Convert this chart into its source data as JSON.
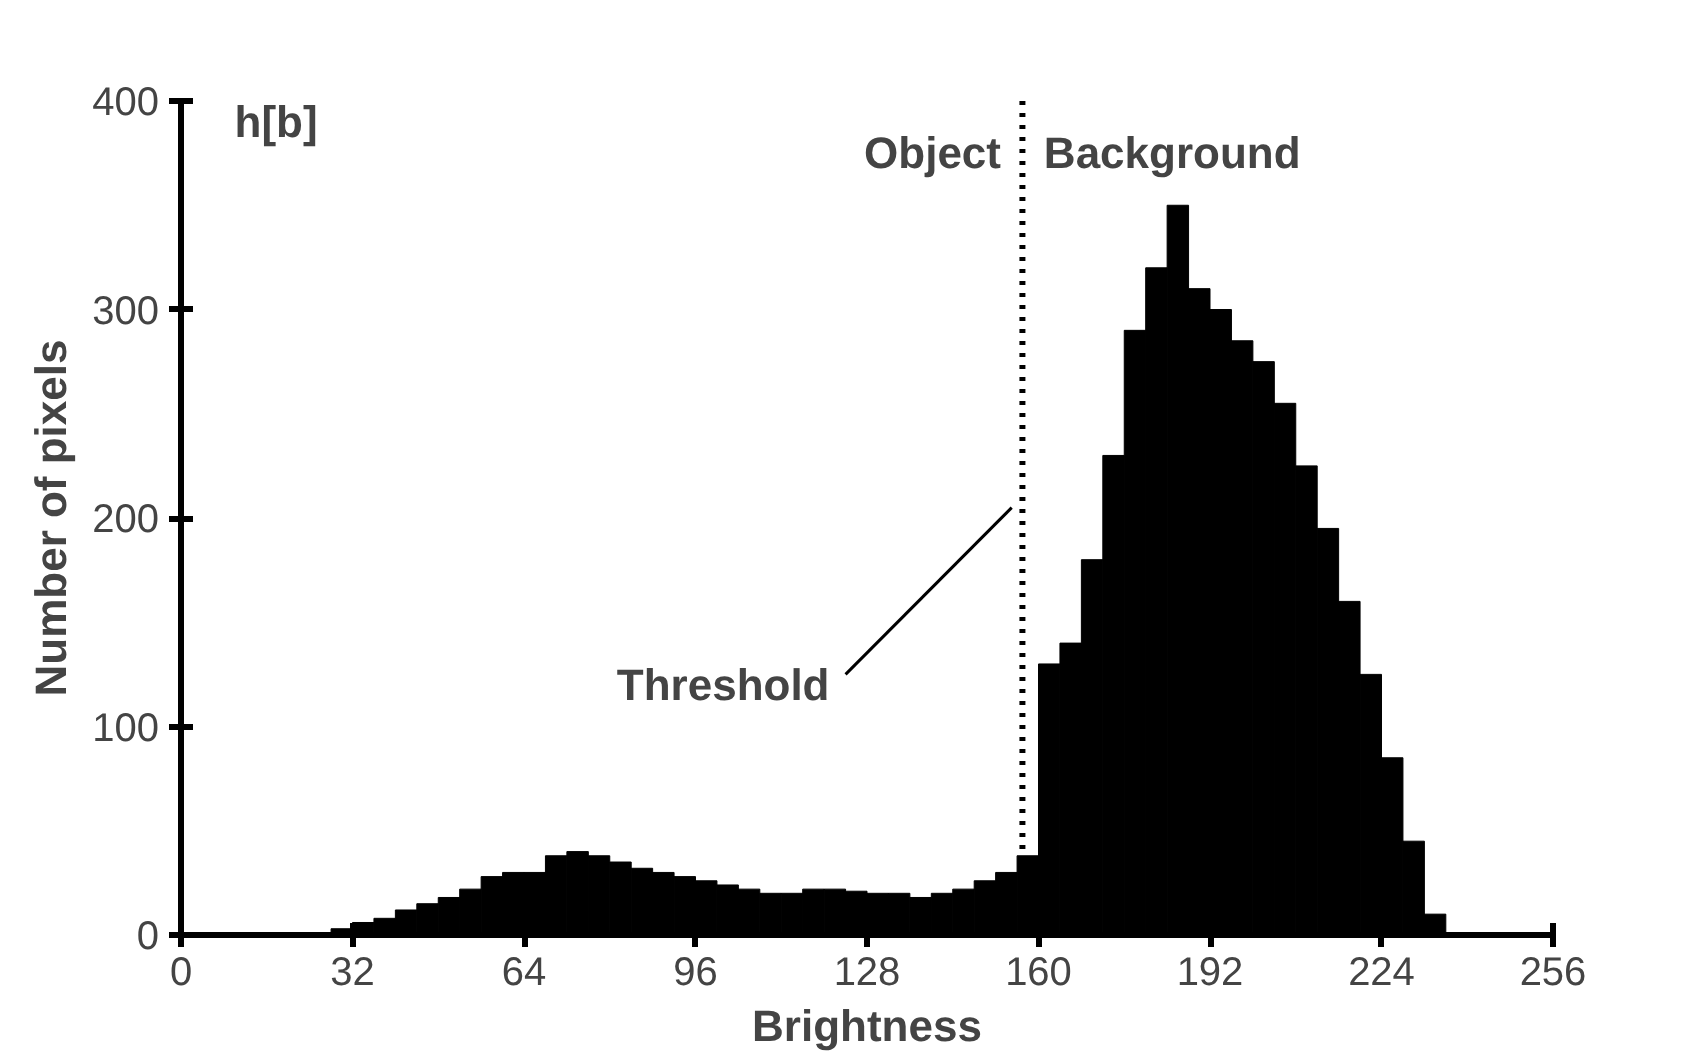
{
  "chart_data": {
    "type": "histogram",
    "xlabel": "Brightness",
    "ylabel": "Number of pixels",
    "bins": [
      28,
      32,
      36,
      40,
      44,
      48,
      52,
      56,
      60,
      64,
      68,
      72,
      76,
      80,
      84,
      88,
      92,
      96,
      100,
      104,
      108,
      112,
      116,
      120,
      124,
      128,
      132,
      136,
      140,
      144,
      148,
      152,
      156,
      160,
      164,
      168,
      172,
      176,
      180,
      184,
      188,
      192,
      196,
      200,
      204,
      208,
      212,
      216,
      220,
      224,
      228,
      232,
      236
    ],
    "values": [
      3,
      6,
      8,
      12,
      15,
      18,
      22,
      28,
      30,
      30,
      38,
      40,
      38,
      35,
      32,
      30,
      28,
      26,
      24,
      22,
      20,
      20,
      22,
      22,
      21,
      20,
      20,
      18,
      20,
      22,
      26,
      30,
      38,
      130,
      140,
      180,
      230,
      290,
      320,
      350,
      310,
      300,
      285,
      275,
      255,
      225,
      195,
      160,
      125,
      85,
      45,
      10
    ],
    "color": "#000000",
    "xlim": [
      0,
      256
    ],
    "xticks": [
      0,
      32,
      64,
      96,
      128,
      160,
      192,
      224,
      256
    ],
    "ylim": [
      0,
      400
    ],
    "yticks": [
      0,
      100,
      200,
      300,
      400
    ],
    "grid": false,
    "ref_lines": [
      {
        "axis": "x",
        "value": 157,
        "label": "Threshold",
        "line_style": "dotted",
        "color": "#000000"
      }
    ],
    "annotations": [
      "h[b]",
      "Object",
      "Background"
    ]
  }
}
